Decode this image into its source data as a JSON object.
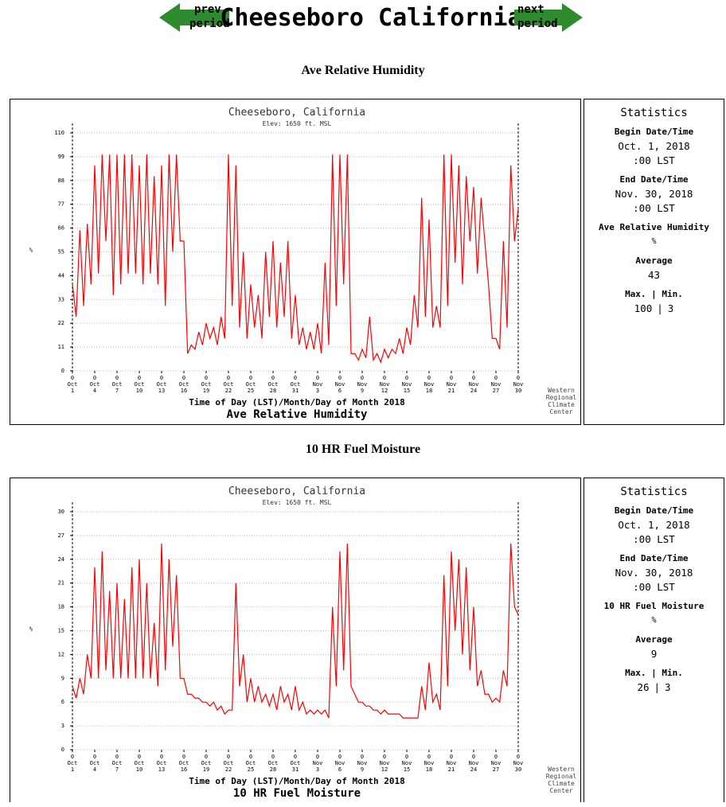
{
  "header": {
    "title": "Cheeseboro California",
    "prev": [
      "prev",
      "period"
    ],
    "next": [
      "next",
      "period"
    ]
  },
  "sections": [
    "Ave Relative Humidity",
    "10 HR Fuel Moisture"
  ],
  "statistics": [
    {
      "title": "Statistics",
      "begin_label": "Begin Date/Time",
      "begin_date": "Oct. 1, 2018",
      "begin_time": ":00 LST",
      "end_label": "End Date/Time",
      "end_date": "Nov. 30, 2018",
      "end_time": ":00 LST",
      "variable": "Ave Relative Humidity",
      "unit": "%",
      "average_label": "Average",
      "average": 43,
      "maxmin_label": "Max. | Min.",
      "max": 100,
      "separator": "|",
      "min": 3
    },
    {
      "title": "Statistics",
      "begin_label": "Begin Date/Time",
      "begin_date": "Oct. 1, 2018",
      "begin_time": ":00 LST",
      "end_label": "End Date/Time",
      "end_date": "Nov. 30, 2018",
      "end_time": ":00 LST",
      "variable": "10 HR Fuel Moisture",
      "unit": "%",
      "average_label": "Average",
      "average": 9,
      "maxmin_label": "Max. | Min.",
      "max": 26,
      "separator": "|",
      "min": 3
    }
  ],
  "chart_data": [
    {
      "type": "line",
      "title": "Cheeseboro, California",
      "subtitle": "Elev: 1650 ft. MSL",
      "y_label": "%",
      "x_label": "Time of Day (LST)/Month/Day of Month 2018",
      "bottom_title": "Ave Relative Humidity",
      "credit": [
        "Western",
        "Regional",
        "Climate",
        "Center"
      ],
      "color": "#ff0000",
      "grid": true,
      "ylim": [
        0,
        110
      ],
      "yticks": [
        0,
        11,
        22,
        33,
        44,
        55,
        66,
        77,
        88,
        99,
        110
      ],
      "xlim": [
        "2018-10-01 00",
        "2018-11-30 00"
      ],
      "xticks": [
        {
          "value": "2018-10-01 00",
          "label": [
            "0",
            "Oct",
            "1"
          ]
        },
        {
          "value": "2018-10-04 00",
          "label": [
            "0",
            "Oct",
            "4"
          ]
        },
        {
          "value": "2018-10-07 00",
          "label": [
            "0",
            "Oct",
            "7"
          ]
        },
        {
          "value": "2018-10-10 00",
          "label": [
            "0",
            "Oct",
            "10"
          ]
        },
        {
          "value": "2018-10-13 00",
          "label": [
            "0",
            "Oct",
            "13"
          ]
        },
        {
          "value": "2018-10-16 00",
          "label": [
            "0",
            "Oct",
            "16"
          ]
        },
        {
          "value": "2018-10-19 00",
          "label": [
            "0",
            "Oct",
            "19"
          ]
        },
        {
          "value": "2018-10-22 00",
          "label": [
            "0",
            "Oct",
            "22"
          ]
        },
        {
          "value": "2018-10-25 00",
          "label": [
            "0",
            "Oct",
            "25"
          ]
        },
        {
          "value": "2018-10-28 00",
          "label": [
            "0",
            "Oct",
            "28"
          ]
        },
        {
          "value": "2018-10-31 00",
          "label": [
            "0",
            "Oct",
            "31"
          ]
        },
        {
          "value": "2018-11-03 00",
          "label": [
            "0",
            "Nov",
            "3"
          ]
        },
        {
          "value": "2018-11-06 00",
          "label": [
            "0",
            "Nov",
            "6"
          ]
        },
        {
          "value": "2018-11-09 00",
          "label": [
            "0",
            "Nov",
            "9"
          ]
        },
        {
          "value": "2018-11-12 00",
          "label": [
            "0",
            "Nov",
            "12"
          ]
        },
        {
          "value": "2018-11-15 00",
          "label": [
            "0",
            "Nov",
            "15"
          ]
        },
        {
          "value": "2018-11-18 00",
          "label": [
            "0",
            "Nov",
            "18"
          ]
        },
        {
          "value": "2018-11-21 00",
          "label": [
            "0",
            "Nov",
            "21"
          ]
        },
        {
          "value": "2018-11-24 00",
          "label": [
            "0",
            "Nov",
            "24"
          ]
        },
        {
          "value": "2018-11-27 00",
          "label": [
            "0",
            "Nov",
            "27"
          ]
        },
        {
          "value": "2018-11-30 00",
          "label": [
            "0",
            "Nov",
            "30"
          ]
        }
      ],
      "x": [
        "2018-10-01 00",
        "2018-10-01 12",
        "2018-10-02 00",
        "2018-10-02 12",
        "2018-10-03 00",
        "2018-10-03 12",
        "2018-10-04 00",
        "2018-10-04 12",
        "2018-10-05 00",
        "2018-10-05 12",
        "2018-10-06 00",
        "2018-10-06 12",
        "2018-10-07 00",
        "2018-10-07 12",
        "2018-10-08 00",
        "2018-10-08 12",
        "2018-10-09 00",
        "2018-10-09 12",
        "2018-10-10 00",
        "2018-10-10 12",
        "2018-10-11 00",
        "2018-10-11 12",
        "2018-10-12 00",
        "2018-10-12 12",
        "2018-10-13 00",
        "2018-10-13 12",
        "2018-10-14 00",
        "2018-10-14 12",
        "2018-10-15 00",
        "2018-10-15 12",
        "2018-10-16 00",
        "2018-10-16 12",
        "2018-10-17 00",
        "2018-10-17 12",
        "2018-10-18 00",
        "2018-10-18 12",
        "2018-10-19 00",
        "2018-10-19 12",
        "2018-10-20 00",
        "2018-10-20 12",
        "2018-10-21 00",
        "2018-10-21 12",
        "2018-10-22 00",
        "2018-10-22 12",
        "2018-10-23 00",
        "2018-10-23 12",
        "2018-10-24 00",
        "2018-10-24 12",
        "2018-10-25 00",
        "2018-10-25 12",
        "2018-10-26 00",
        "2018-10-26 12",
        "2018-10-27 00",
        "2018-10-27 12",
        "2018-10-28 00",
        "2018-10-28 12",
        "2018-10-29 00",
        "2018-10-29 12",
        "2018-10-30 00",
        "2018-10-30 12",
        "2018-10-31 00",
        "2018-10-31 12",
        "2018-11-01 00",
        "2018-11-01 12",
        "2018-11-02 00",
        "2018-11-02 12",
        "2018-11-03 00",
        "2018-11-03 12",
        "2018-11-04 00",
        "2018-11-04 12",
        "2018-11-05 00",
        "2018-11-05 12",
        "2018-11-06 00",
        "2018-11-06 12",
        "2018-11-07 00",
        "2018-11-07 12",
        "2018-11-08 00",
        "2018-11-08 12",
        "2018-11-09 00",
        "2018-11-09 12",
        "2018-11-10 00",
        "2018-11-10 12",
        "2018-11-11 00",
        "2018-11-11 12",
        "2018-11-12 00",
        "2018-11-12 12",
        "2018-11-13 00",
        "2018-11-13 12",
        "2018-11-14 00",
        "2018-11-14 12",
        "2018-11-15 00",
        "2018-11-15 12",
        "2018-11-16 00",
        "2018-11-16 12",
        "2018-11-17 00",
        "2018-11-17 12",
        "2018-11-18 00",
        "2018-11-18 12",
        "2018-11-19 00",
        "2018-11-19 12",
        "2018-11-20 00",
        "2018-11-20 12",
        "2018-11-21 00",
        "2018-11-21 12",
        "2018-11-22 00",
        "2018-11-22 12",
        "2018-11-23 00",
        "2018-11-23 12",
        "2018-11-24 00",
        "2018-11-24 12",
        "2018-11-25 00",
        "2018-11-25 12",
        "2018-11-26 00",
        "2018-11-26 12",
        "2018-11-27 00",
        "2018-11-27 12",
        "2018-11-28 00",
        "2018-11-28 12",
        "2018-11-29 00",
        "2018-11-29 12",
        "2018-11-30 00"
      ],
      "values": [
        40,
        25,
        65,
        30,
        68,
        40,
        95,
        45,
        100,
        60,
        100,
        35,
        100,
        40,
        100,
        45,
        100,
        45,
        95,
        40,
        100,
        45,
        90,
        40,
        95,
        30,
        100,
        55,
        100,
        60,
        60,
        8,
        12,
        10,
        18,
        12,
        22,
        15,
        20,
        12,
        25,
        15,
        100,
        30,
        95,
        20,
        55,
        15,
        40,
        20,
        35,
        15,
        55,
        25,
        60,
        20,
        50,
        25,
        60,
        15,
        35,
        12,
        20,
        10,
        18,
        10,
        22,
        8,
        50,
        12,
        100,
        30,
        100,
        40,
        100,
        8,
        8,
        5,
        10,
        6,
        25,
        5,
        8,
        4,
        10,
        6,
        10,
        8,
        15,
        8,
        20,
        12,
        35,
        20,
        80,
        25,
        70,
        20,
        30,
        20,
        100,
        30,
        100,
        50,
        95,
        40,
        90,
        60,
        85,
        45,
        80,
        60,
        40,
        15,
        15,
        10,
        60,
        20,
        95,
        60,
        75
      ]
    },
    {
      "type": "line",
      "title": "Cheeseboro, California",
      "subtitle": "Elev: 1650 ft. MSL",
      "y_label": "%",
      "x_label": "Time of Day (LST)/Month/Day of Month 2018",
      "bottom_title": "10 HR Fuel Moisture",
      "credit": [
        "Western",
        "Regional",
        "Climate",
        "Center"
      ],
      "color": "#ff0000",
      "grid": true,
      "ylim": [
        0,
        30
      ],
      "yticks": [
        0,
        3,
        6,
        9,
        12,
        15,
        18,
        21,
        24,
        27,
        30
      ],
      "xlim": [
        "2018-10-01 00",
        "2018-11-30 00"
      ],
      "xticks": [
        {
          "value": "2018-10-01 00",
          "label": [
            "0",
            "Oct",
            "1"
          ]
        },
        {
          "value": "2018-10-04 00",
          "label": [
            "0",
            "Oct",
            "4"
          ]
        },
        {
          "value": "2018-10-07 00",
          "label": [
            "0",
            "Oct",
            "7"
          ]
        },
        {
          "value": "2018-10-10 00",
          "label": [
            "0",
            "Oct",
            "10"
          ]
        },
        {
          "value": "2018-10-13 00",
          "label": [
            "0",
            "Oct",
            "13"
          ]
        },
        {
          "value": "2018-10-16 00",
          "label": [
            "0",
            "Oct",
            "16"
          ]
        },
        {
          "value": "2018-10-19 00",
          "label": [
            "0",
            "Oct",
            "19"
          ]
        },
        {
          "value": "2018-10-22 00",
          "label": [
            "0",
            "Oct",
            "22"
          ]
        },
        {
          "value": "2018-10-25 00",
          "label": [
            "0",
            "Oct",
            "25"
          ]
        },
        {
          "value": "2018-10-28 00",
          "label": [
            "0",
            "Oct",
            "28"
          ]
        },
        {
          "value": "2018-10-31 00",
          "label": [
            "0",
            "Oct",
            "31"
          ]
        },
        {
          "value": "2018-11-03 00",
          "label": [
            "0",
            "Nov",
            "3"
          ]
        },
        {
          "value": "2018-11-06 00",
          "label": [
            "0",
            "Nov",
            "6"
          ]
        },
        {
          "value": "2018-11-09 00",
          "label": [
            "0",
            "Nov",
            "9"
          ]
        },
        {
          "value": "2018-11-12 00",
          "label": [
            "0",
            "Nov",
            "12"
          ]
        },
        {
          "value": "2018-11-15 00",
          "label": [
            "0",
            "Nov",
            "15"
          ]
        },
        {
          "value": "2018-11-18 00",
          "label": [
            "0",
            "Nov",
            "18"
          ]
        },
        {
          "value": "2018-11-21 00",
          "label": [
            "0",
            "Nov",
            "21"
          ]
        },
        {
          "value": "2018-11-24 00",
          "label": [
            "0",
            "Nov",
            "24"
          ]
        },
        {
          "value": "2018-11-27 00",
          "label": [
            "0",
            "Nov",
            "27"
          ]
        },
        {
          "value": "2018-11-30 00",
          "label": [
            "0",
            "Nov",
            "30"
          ]
        }
      ],
      "x": [
        "2018-10-01 00",
        "2018-10-01 12",
        "2018-10-02 00",
        "2018-10-02 12",
        "2018-10-03 00",
        "2018-10-03 12",
        "2018-10-04 00",
        "2018-10-04 12",
        "2018-10-05 00",
        "2018-10-05 12",
        "2018-10-06 00",
        "2018-10-06 12",
        "2018-10-07 00",
        "2018-10-07 12",
        "2018-10-08 00",
        "2018-10-08 12",
        "2018-10-09 00",
        "2018-10-09 12",
        "2018-10-10 00",
        "2018-10-10 12",
        "2018-10-11 00",
        "2018-10-11 12",
        "2018-10-12 00",
        "2018-10-12 12",
        "2018-10-13 00",
        "2018-10-13 12",
        "2018-10-14 00",
        "2018-10-14 12",
        "2018-10-15 00",
        "2018-10-15 12",
        "2018-10-16 00",
        "2018-10-16 12",
        "2018-10-17 00",
        "2018-10-17 12",
        "2018-10-18 00",
        "2018-10-18 12",
        "2018-10-19 00",
        "2018-10-19 12",
        "2018-10-20 00",
        "2018-10-20 12",
        "2018-10-21 00",
        "2018-10-21 12",
        "2018-10-22 00",
        "2018-10-22 12",
        "2018-10-23 00",
        "2018-10-23 12",
        "2018-10-24 00",
        "2018-10-24 12",
        "2018-10-25 00",
        "2018-10-25 12",
        "2018-10-26 00",
        "2018-10-26 12",
        "2018-10-27 00",
        "2018-10-27 12",
        "2018-10-28 00",
        "2018-10-28 12",
        "2018-10-29 00",
        "2018-10-29 12",
        "2018-10-30 00",
        "2018-10-30 12",
        "2018-10-31 00",
        "2018-10-31 12",
        "2018-11-01 00",
        "2018-11-01 12",
        "2018-11-02 00",
        "2018-11-02 12",
        "2018-11-03 00",
        "2018-11-03 12",
        "2018-11-04 00",
        "2018-11-04 12",
        "2018-11-05 00",
        "2018-11-05 12",
        "2018-11-06 00",
        "2018-11-06 12",
        "2018-11-07 00",
        "2018-11-07 12",
        "2018-11-08 00",
        "2018-11-08 12",
        "2018-11-09 00",
        "2018-11-09 12",
        "2018-11-10 00",
        "2018-11-10 12",
        "2018-11-11 00",
        "2018-11-11 12",
        "2018-11-12 00",
        "2018-11-12 12",
        "2018-11-13 00",
        "2018-11-13 12",
        "2018-11-14 00",
        "2018-11-14 12",
        "2018-11-15 00",
        "2018-11-15 12",
        "2018-11-16 00",
        "2018-11-16 12",
        "2018-11-17 00",
        "2018-11-17 12",
        "2018-11-18 00",
        "2018-11-18 12",
        "2018-11-19 00",
        "2018-11-19 12",
        "2018-11-20 00",
        "2018-11-20 12",
        "2018-11-21 00",
        "2018-11-21 12",
        "2018-11-22 00",
        "2018-11-22 12",
        "2018-11-23 00",
        "2018-11-23 12",
        "2018-11-24 00",
        "2018-11-24 12",
        "2018-11-25 00",
        "2018-11-25 12",
        "2018-11-26 00",
        "2018-11-26 12",
        "2018-11-27 00",
        "2018-11-27 12",
        "2018-11-28 00",
        "2018-11-28 12",
        "2018-11-29 00",
        "2018-11-29 12",
        "2018-11-30 00"
      ],
      "values": [
        8,
        6.5,
        9,
        7,
        12,
        9,
        23,
        9,
        25,
        10,
        20,
        9,
        21,
        9,
        19,
        9,
        23,
        9,
        24,
        9,
        21,
        9,
        16,
        8,
        26,
        10,
        24,
        13,
        22,
        9,
        9,
        7,
        7,
        6.5,
        6.5,
        6,
        6,
        5.5,
        6,
        5,
        5.5,
        4.5,
        5,
        5,
        21,
        8,
        12,
        6,
        9,
        6,
        8,
        6,
        7,
        5.5,
        7,
        5,
        8,
        6,
        7,
        5,
        8,
        5,
        6,
        4.5,
        5,
        4.5,
        5,
        4.5,
        5,
        4,
        18,
        8,
        25,
        10,
        26,
        8,
        7,
        6,
        6,
        5.5,
        5.5,
        5,
        5,
        4.5,
        5,
        4.5,
        4.5,
        4.5,
        4.5,
        4,
        4,
        4,
        4,
        4,
        8,
        5,
        11,
        6,
        7,
        5,
        22,
        8,
        25,
        15,
        24,
        12,
        23,
        10,
        18,
        8,
        10,
        7,
        7,
        6,
        6.5,
        6,
        10,
        8,
        26,
        18,
        17
      ]
    }
  ]
}
